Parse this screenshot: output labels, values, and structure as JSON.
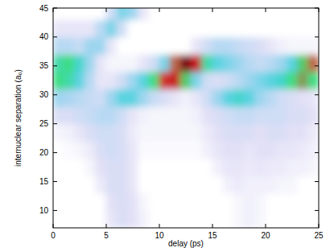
{
  "chart_data": {
    "type": "heatmap",
    "x_label": "delay (ps)",
    "y_label": "internuclear separation (a₀)",
    "xlim": [
      0,
      25
    ],
    "ylim": [
      7,
      45
    ],
    "xticks": [
      0,
      5,
      10,
      15,
      20,
      25
    ],
    "yticks": [
      10,
      15,
      20,
      25,
      30,
      35,
      40,
      45
    ],
    "grid": false,
    "zlim": [
      0,
      1
    ],
    "x": [
      0.5,
      1.5,
      2.5,
      3.5,
      4.5,
      5.5,
      6.5,
      7.5,
      8.5,
      9.5,
      10.5,
      11.5,
      12.5,
      13.5,
      14.5,
      15.5,
      16.5,
      17.5,
      18.5,
      19.5,
      20.5,
      21.5,
      22.5,
      23.5,
      24.5
    ],
    "y": [
      8.5,
      11.5,
      14.5,
      17.5,
      20.5,
      23.5,
      26.5,
      29.5,
      32.5,
      35.5,
      38.5,
      41.5,
      44.5
    ],
    "values": [
      [
        0,
        0,
        0,
        0,
        0,
        0.05,
        0.08,
        0.06,
        0.03,
        0,
        0,
        0,
        0,
        0,
        0,
        0,
        0,
        0.02,
        0.03,
        0.02,
        0,
        0,
        0,
        0,
        0
      ],
      [
        0,
        0,
        0,
        0,
        0,
        0.06,
        0.08,
        0.06,
        0.02,
        0,
        0,
        0,
        0,
        0,
        0,
        0,
        0,
        0.02,
        0.03,
        0.02,
        0,
        0,
        0,
        0,
        0
      ],
      [
        0,
        0,
        0,
        0,
        0.04,
        0.08,
        0.08,
        0.05,
        0,
        0,
        0,
        0,
        0,
        0,
        0,
        0,
        0.03,
        0.04,
        0.03,
        0.03,
        0.03,
        0.02,
        0.02,
        0,
        0
      ],
      [
        0,
        0,
        0,
        0.02,
        0.06,
        0.08,
        0.08,
        0.05,
        0,
        0,
        0,
        0,
        0,
        0,
        0,
        0.03,
        0.05,
        0.05,
        0.04,
        0.05,
        0.04,
        0.04,
        0.03,
        0.03,
        0.02
      ],
      [
        0,
        0.01,
        0.02,
        0.04,
        0.08,
        0.1,
        0.08,
        0.05,
        0.01,
        0.01,
        0.01,
        0.01,
        0.01,
        0.01,
        0.03,
        0.05,
        0.06,
        0.06,
        0.05,
        0.06,
        0.06,
        0.05,
        0.05,
        0.04,
        0.03
      ],
      [
        0.02,
        0.03,
        0.05,
        0.08,
        0.1,
        0.1,
        0.08,
        0.04,
        0.02,
        0.02,
        0.02,
        0.02,
        0.02,
        0.02,
        0.04,
        0.06,
        0.08,
        0.08,
        0.08,
        0.06,
        0.08,
        0.08,
        0.06,
        0.06,
        0.04
      ],
      [
        0.08,
        0.08,
        0.1,
        0.12,
        0.15,
        0.15,
        0.1,
        0.05,
        0.03,
        0.02,
        0.02,
        0.02,
        0.02,
        0.03,
        0.06,
        0.08,
        0.1,
        0.12,
        0.12,
        0.1,
        0.1,
        0.1,
        0.08,
        0.08,
        0.06
      ],
      [
        0.2,
        0.18,
        0.15,
        0.12,
        0.1,
        0.2,
        0.3,
        0.3,
        0.2,
        0.12,
        0.08,
        0.05,
        0.03,
        0.05,
        0.1,
        0.2,
        0.3,
        0.35,
        0.3,
        0.2,
        0.15,
        0.1,
        0.08,
        0.06,
        0.05
      ],
      [
        0.45,
        0.4,
        0.3,
        0.15,
        0.05,
        0.05,
        0.1,
        0.2,
        0.3,
        0.45,
        0.7,
        0.75,
        0.5,
        0.25,
        0.1,
        0.08,
        0.1,
        0.15,
        0.2,
        0.25,
        0.3,
        0.35,
        0.45,
        0.55,
        0.45
      ],
      [
        0.4,
        0.45,
        0.35,
        0.2,
        0.05,
        0.02,
        0.02,
        0.02,
        0.05,
        0.1,
        0.25,
        0.6,
        0.9,
        0.75,
        0.4,
        0.3,
        0.25,
        0.2,
        0.15,
        0.12,
        0.15,
        0.2,
        0.3,
        0.5,
        0.6
      ],
      [
        0.15,
        0.15,
        0.12,
        0.2,
        0.2,
        0.05,
        0,
        0,
        0,
        0,
        0,
        0,
        0,
        0.05,
        0.1,
        0.15,
        0.15,
        0.12,
        0.1,
        0.08,
        0.05,
        0.03,
        0.02,
        0.02,
        0.02
      ],
      [
        0.05,
        0.05,
        0.05,
        0.05,
        0.15,
        0.25,
        0.1,
        0,
        0,
        0,
        0,
        0,
        0,
        0,
        0,
        0,
        0,
        0,
        0,
        0,
        0,
        0,
        0,
        0,
        0
      ],
      [
        0,
        0,
        0,
        0,
        0,
        0.1,
        0.25,
        0.2,
        0.05,
        0,
        0,
        0,
        0,
        0,
        0,
        0,
        0,
        0,
        0,
        0,
        0,
        0,
        0,
        0,
        0
      ]
    ]
  }
}
